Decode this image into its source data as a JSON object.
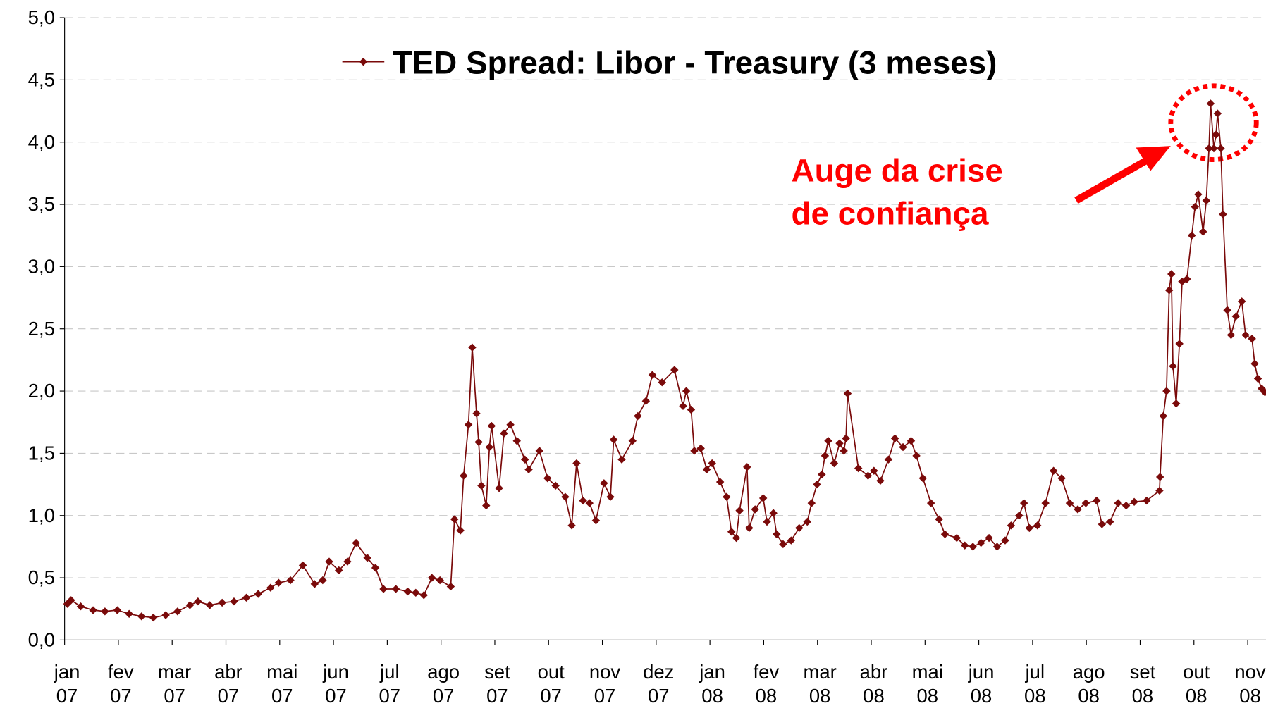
{
  "chart_data": {
    "type": "line",
    "annotation_lines": [
      "Auge da crise",
      "de confiança"
    ],
    "series": [
      {
        "name": "TED Spread: Libor - Treasury (3 meses)",
        "color": "#7a0a0a",
        "x": [
          0.05,
          0.12,
          0.3,
          0.53,
          0.75,
          0.98,
          1.2,
          1.43,
          1.65,
          1.88,
          2.1,
          2.33,
          2.48,
          2.7,
          2.93,
          3.15,
          3.38,
          3.6,
          3.83,
          3.98,
          4.2,
          4.43,
          4.65,
          4.8,
          4.92,
          5.1,
          5.26,
          5.42,
          5.63,
          5.78,
          5.93,
          6.16,
          6.38,
          6.53,
          6.68,
          6.83,
          6.98,
          7.18,
          7.25,
          7.36,
          7.42,
          7.51,
          7.58,
          7.66,
          7.7,
          7.75,
          7.84,
          7.9,
          7.94,
          8.08,
          8.17,
          8.29,
          8.41,
          8.56,
          8.63,
          8.83,
          8.98,
          9.13,
          9.31,
          9.43,
          9.52,
          9.64,
          9.76,
          9.88,
          10.03,
          10.15,
          10.21,
          10.36,
          10.56,
          10.66,
          10.81,
          10.93,
          11.11,
          11.34,
          11.5,
          11.56,
          11.65,
          11.71,
          11.83,
          11.94,
          12.04,
          12.19,
          12.31,
          12.4,
          12.49,
          12.55,
          12.69,
          12.73,
          12.84,
          12.99,
          13.06,
          13.18,
          13.24,
          13.36,
          13.51,
          13.66,
          13.81,
          13.89,
          13.99,
          14.08,
          14.14,
          14.2,
          14.31,
          14.41,
          14.49,
          14.53,
          14.56,
          14.76,
          14.94,
          15.05,
          15.17,
          15.32,
          15.44,
          15.59,
          15.74,
          15.84,
          15.96,
          16.11,
          16.26,
          16.37,
          16.59,
          16.74,
          16.89,
          17.04,
          17.19,
          17.34,
          17.49,
          17.6,
          17.75,
          17.84,
          17.94,
          18.09,
          18.24,
          18.39,
          18.54,
          18.69,
          18.84,
          18.99,
          19.19,
          19.29,
          19.44,
          19.59,
          19.74,
          19.89,
          20.12,
          20.36,
          20.37,
          20.43,
          20.49,
          20.54,
          20.58,
          20.61,
          20.67,
          20.73,
          20.78,
          20.87,
          20.96,
          21.02,
          21.08,
          21.17,
          21.23,
          21.28,
          21.31,
          21.37,
          21.41,
          21.44,
          21.5,
          21.54,
          21.62,
          21.69,
          21.78,
          21.89,
          21.96,
          22.08,
          22.13,
          22.19,
          22.26,
          22.32
        ],
        "values": [
          0.29,
          0.32,
          0.27,
          0.24,
          0.23,
          0.24,
          0.21,
          0.19,
          0.18,
          0.2,
          0.23,
          0.28,
          0.31,
          0.28,
          0.3,
          0.31,
          0.34,
          0.37,
          0.42,
          0.46,
          0.48,
          0.6,
          0.45,
          0.48,
          0.63,
          0.56,
          0.63,
          0.78,
          0.66,
          0.58,
          0.41,
          0.41,
          0.39,
          0.38,
          0.36,
          0.5,
          0.48,
          0.43,
          0.97,
          0.88,
          1.32,
          1.73,
          2.35,
          1.82,
          1.59,
          1.24,
          1.08,
          1.55,
          1.72,
          1.22,
          1.66,
          1.73,
          1.6,
          1.45,
          1.37,
          1.52,
          1.3,
          1.24,
          1.15,
          0.92,
          1.42,
          1.12,
          1.1,
          0.96,
          1.26,
          1.15,
          1.61,
          1.45,
          1.6,
          1.8,
          1.92,
          2.13,
          2.07,
          2.17,
          1.88,
          2.0,
          1.85,
          1.52,
          1.54,
          1.37,
          1.42,
          1.27,
          1.15,
          0.87,
          0.82,
          1.04,
          1.39,
          0.9,
          1.05,
          1.14,
          0.95,
          1.02,
          0.85,
          0.77,
          0.8,
          0.9,
          0.95,
          1.1,
          1.25,
          1.33,
          1.48,
          1.6,
          1.42,
          1.58,
          1.52,
          1.62,
          1.98,
          1.38,
          1.32,
          1.36,
          1.28,
          1.45,
          1.62,
          1.55,
          1.6,
          1.48,
          1.3,
          1.1,
          0.97,
          0.85,
          0.82,
          0.76,
          0.75,
          0.78,
          0.82,
          0.75,
          0.8,
          0.92,
          1.0,
          1.1,
          0.9,
          0.92,
          1.1,
          1.36,
          1.3,
          1.1,
          1.05,
          1.1,
          1.12,
          0.93,
          0.95,
          1.1,
          1.08,
          1.11,
          1.12,
          1.2,
          1.31,
          1.8,
          2.0,
          2.81,
          2.94,
          2.2,
          1.9,
          2.38,
          2.88,
          2.9,
          3.25,
          3.48,
          3.58,
          3.28,
          3.53,
          3.95,
          4.31,
          3.95,
          4.06,
          4.23,
          3.95,
          3.42,
          2.65,
          2.45,
          2.6,
          2.72,
          2.45,
          2.42,
          2.22,
          2.1,
          2.02,
          1.99
        ]
      }
    ],
    "xlim": [
      0,
      22.34
    ],
    "xticks": [
      {
        "value": 0,
        "label": "jan 07"
      },
      {
        "value": 1,
        "label": "fev 07"
      },
      {
        "value": 2,
        "label": "mar 07"
      },
      {
        "value": 3,
        "label": "abr 07"
      },
      {
        "value": 4,
        "label": "mai 07"
      },
      {
        "value": 5,
        "label": "jun 07"
      },
      {
        "value": 6,
        "label": "jul 07"
      },
      {
        "value": 7,
        "label": "ago 07"
      },
      {
        "value": 8,
        "label": "set 07"
      },
      {
        "value": 9,
        "label": "out 07"
      },
      {
        "value": 10,
        "label": "nov 07"
      },
      {
        "value": 11,
        "label": "dez 07"
      },
      {
        "value": 12,
        "label": "jan 08"
      },
      {
        "value": 13,
        "label": "fev 08"
      },
      {
        "value": 14,
        "label": "mar 08"
      },
      {
        "value": 15,
        "label": "abr 08"
      },
      {
        "value": 16,
        "label": "mai 08"
      },
      {
        "value": 17,
        "label": "jun 08"
      },
      {
        "value": 18,
        "label": "jul 08"
      },
      {
        "value": 19,
        "label": "ago 08"
      },
      {
        "value": 20,
        "label": "set 08"
      },
      {
        "value": 21,
        "label": "out 08"
      },
      {
        "value": 22,
        "label": "nov 08"
      }
    ],
    "ylim": [
      0,
      5
    ],
    "yticks": [
      {
        "value": 0,
        "label": "0,0"
      },
      {
        "value": 0.5,
        "label": "0,5"
      },
      {
        "value": 1,
        "label": "1,0"
      },
      {
        "value": 1.5,
        "label": "1,5"
      },
      {
        "value": 2,
        "label": "2,0"
      },
      {
        "value": 2.5,
        "label": "2,5"
      },
      {
        "value": 3,
        "label": "3,0"
      },
      {
        "value": 3.5,
        "label": "3,5"
      },
      {
        "value": 4,
        "label": "4,0"
      },
      {
        "value": 4.5,
        "label": "4,5"
      },
      {
        "value": 5,
        "label": "5,0"
      }
    ],
    "grid": true
  }
}
